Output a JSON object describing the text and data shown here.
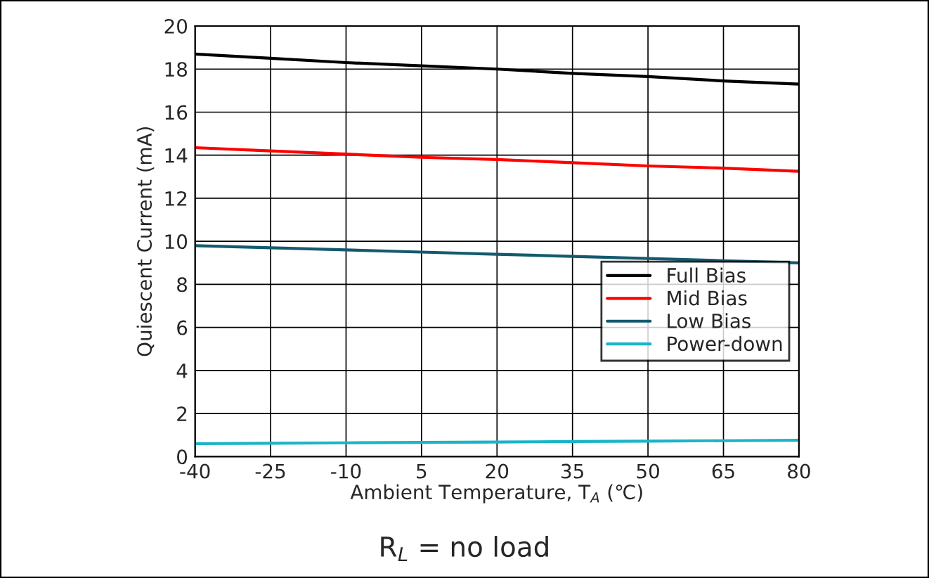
{
  "chart_data": {
    "type": "line",
    "xlabel": "Ambient Temperature, T$_{A}$ (℃)",
    "ylabel": "Quiescent Current (mA)",
    "x": [
      -40,
      -25,
      -10,
      5,
      20,
      35,
      50,
      65,
      80
    ],
    "series": [
      {
        "name": "Full Bias",
        "color": "#000000",
        "values": [
          18.7,
          18.5,
          18.3,
          18.15,
          18.0,
          17.8,
          17.65,
          17.45,
          17.3
        ]
      },
      {
        "name": "Mid Bias",
        "color": "#ff0000",
        "values": [
          14.35,
          14.2,
          14.05,
          13.9,
          13.8,
          13.65,
          13.5,
          13.4,
          13.25
        ]
      },
      {
        "name": "Low Bias",
        "color": "#145a6e",
        "values": [
          9.8,
          9.7,
          9.6,
          9.5,
          9.4,
          9.3,
          9.2,
          9.1,
          9.0
        ]
      },
      {
        "name": "Power-down",
        "color": "#1ab4c8",
        "values": [
          0.6,
          0.62,
          0.64,
          0.66,
          0.68,
          0.7,
          0.72,
          0.74,
          0.76
        ]
      }
    ],
    "xlim": [
      -40,
      80
    ],
    "xticks": [
      -40,
      -25,
      -10,
      5,
      20,
      35,
      50,
      65,
      80
    ],
    "ylim": [
      0,
      20
    ],
    "yticks": [
      0,
      2,
      4,
      6,
      8,
      10,
      12,
      14,
      16,
      18,
      20
    ],
    "grid": true,
    "legend": "bottom right",
    "marker": "none",
    "line_style": "solid",
    "annotations": [
      "R$_{L}$ = no load"
    ]
  }
}
